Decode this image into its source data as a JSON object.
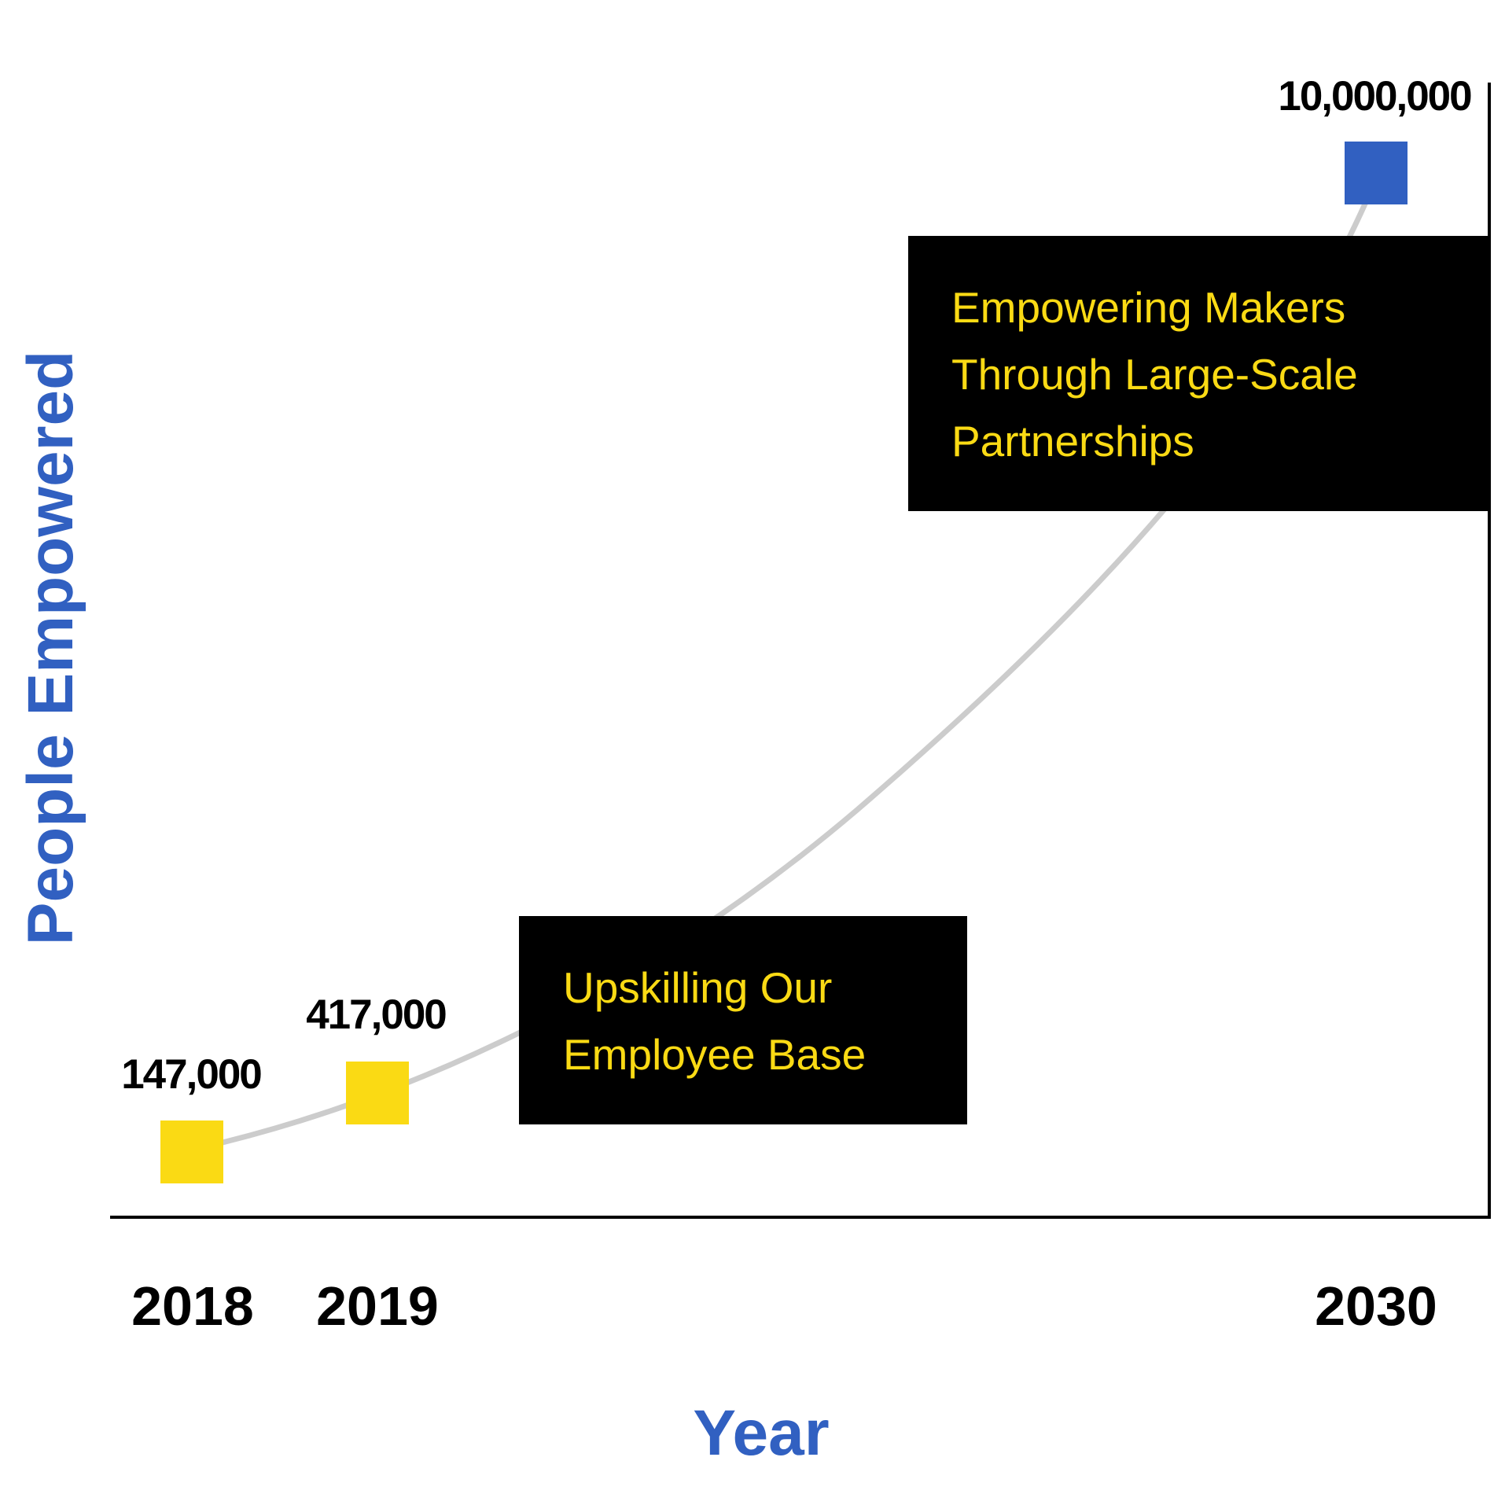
{
  "chart_data": {
    "type": "line",
    "title": "",
    "xlabel": "Year",
    "ylabel": "People Empowered",
    "grid": false,
    "legend": "none",
    "x": [
      "2018",
      "2019",
      "2030"
    ],
    "y": [
      147000,
      417000,
      10000000
    ],
    "data_labels": [
      "147,000",
      "417,000",
      "10,000,000"
    ],
    "point_colors": [
      "#FADA14",
      "#FADA14",
      "#3160C1"
    ],
    "line_color": "#CCCCCC",
    "axis_label_color": "#3160C1",
    "annotations": [
      {
        "lines": [
          "Upskilling Our",
          "Employee Base"
        ],
        "background": "#000000",
        "color": "#FADA14"
      },
      {
        "lines": [
          "Empowering Makers",
          "Through Large-Scale",
          "Partnerships"
        ],
        "background": "#000000",
        "color": "#FADA14"
      }
    ]
  }
}
